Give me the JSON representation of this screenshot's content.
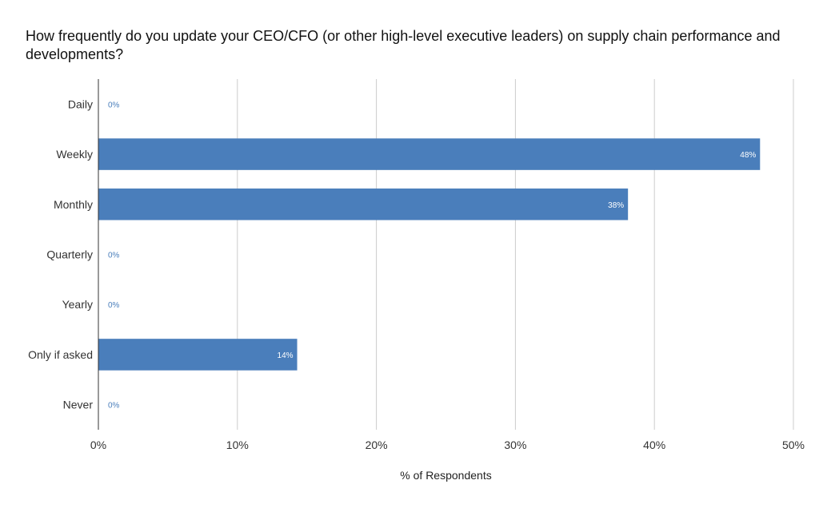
{
  "chart_data": {
    "type": "bar",
    "orientation": "horizontal",
    "title": "How frequently do you update your CEO/CFO (or other high-level executive leaders) on supply chain performance and developments?",
    "xlabel": "% of Respondents",
    "categories": [
      "Daily",
      "Weekly",
      "Monthly",
      "Quarterly",
      "Yearly",
      "Only if asked",
      "Never"
    ],
    "values": [
      0,
      47.6,
      38.1,
      0,
      0,
      14.3,
      0
    ],
    "data_labels": [
      "0%",
      "48%",
      "38%",
      "0%",
      "0%",
      "14%",
      "0%"
    ],
    "xlim": [
      0,
      50
    ],
    "xticks": [
      0,
      10,
      20,
      30,
      40,
      50
    ],
    "xtick_labels": [
      "0%",
      "10%",
      "20%",
      "30%",
      "40%",
      "50%"
    ],
    "grid": "vertical",
    "legend": "none",
    "bar_color": "#4a7ebb",
    "label_outside_color": "#4a7ebb",
    "gridline_color": "#cccccc"
  }
}
